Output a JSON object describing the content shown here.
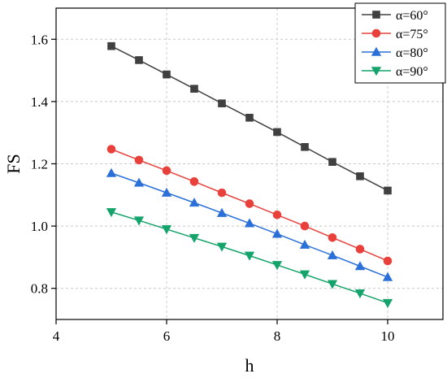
{
  "chart_data": {
    "type": "line",
    "title": "",
    "xlabel": "h",
    "ylabel": "FS",
    "xlim": [
      4,
      11
    ],
    "ylim": [
      0.7,
      1.7
    ],
    "xticks": [
      4,
      6,
      8,
      10
    ],
    "yticks": [
      0.8,
      1.0,
      1.2,
      1.4,
      1.6
    ],
    "xtick_labels": [
      "4",
      "6",
      "8",
      "10"
    ],
    "ytick_labels": [
      "0.8",
      "1.0",
      "1.2",
      "1.4",
      "1.6"
    ],
    "grid": true,
    "legend_position": "top-right",
    "x": [
      5,
      5.5,
      6,
      6.5,
      7,
      7.5,
      8,
      8.5,
      9,
      9.5,
      10
    ],
    "series": [
      {
        "name": "α=60°",
        "color": "#404040",
        "marker": "square",
        "values": [
          1.578,
          1.533,
          1.487,
          1.441,
          1.394,
          1.348,
          1.302,
          1.254,
          1.206,
          1.16,
          1.114
        ]
      },
      {
        "name": "α=75°",
        "color": "#e8413c",
        "marker": "circle",
        "values": [
          1.247,
          1.212,
          1.178,
          1.143,
          1.107,
          1.072,
          1.036,
          1.0,
          0.963,
          0.926,
          0.888
        ]
      },
      {
        "name": "α=80°",
        "color": "#2a70d8",
        "marker": "triangle-up",
        "values": [
          1.17,
          1.139,
          1.107,
          1.075,
          1.042,
          1.009,
          0.975,
          0.94,
          0.906,
          0.871,
          0.836
        ]
      },
      {
        "name": "α=90°",
        "color": "#14a36a",
        "marker": "triangle-down",
        "values": [
          1.045,
          1.018,
          0.99,
          0.962,
          0.934,
          0.905,
          0.875,
          0.845,
          0.814,
          0.784,
          0.753
        ]
      }
    ]
  }
}
